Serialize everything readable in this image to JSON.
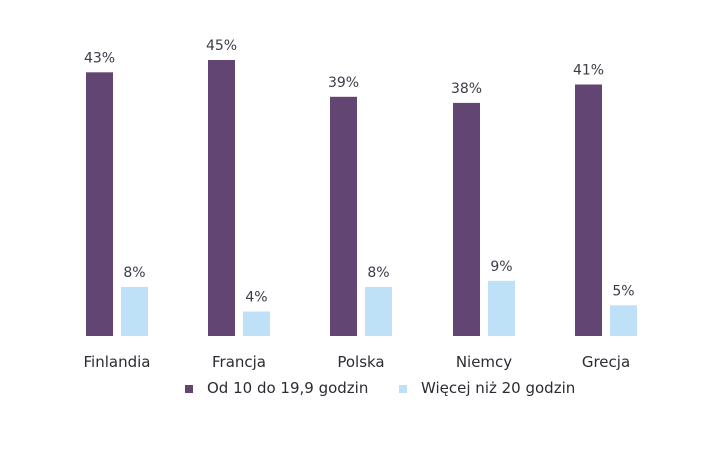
{
  "chart_data": {
    "type": "bar",
    "categories": [
      "Finlandia",
      "Francja",
      "Polska",
      "Niemcy",
      "Grecja"
    ],
    "series": [
      {
        "name": "Od 10 do 19,9 godzin",
        "color": "#634574",
        "values": [
          43,
          45,
          39,
          38,
          41
        ],
        "labels": [
          "43%",
          "45%",
          "39%",
          "38%",
          "41%"
        ]
      },
      {
        "name": "Więcej niż 20 godzin",
        "color": "#bfe1f7",
        "values": [
          8,
          4,
          8,
          9,
          5
        ],
        "labels": [
          "8%",
          "4%",
          "8%",
          "9%",
          "5%"
        ]
      }
    ],
    "ylim": [
      0,
      45
    ],
    "grid": false,
    "legend_position": "bottom"
  }
}
